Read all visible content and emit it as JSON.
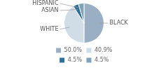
{
  "chart_data": {
    "type": "pie",
    "categories": [
      "BLACK",
      "WHITE",
      "ASIAN",
      "HISPANIC"
    ],
    "values": [
      50.0,
      40.9,
      4.5,
      4.5
    ],
    "colors": [
      "#9bafc4",
      "#d0dde6",
      "#2e6f9c",
      "#7fa3b8"
    ],
    "value_labels": [
      "50.0%",
      "40.9%",
      "4.5%",
      "4.5%"
    ],
    "legend": "bottom"
  }
}
